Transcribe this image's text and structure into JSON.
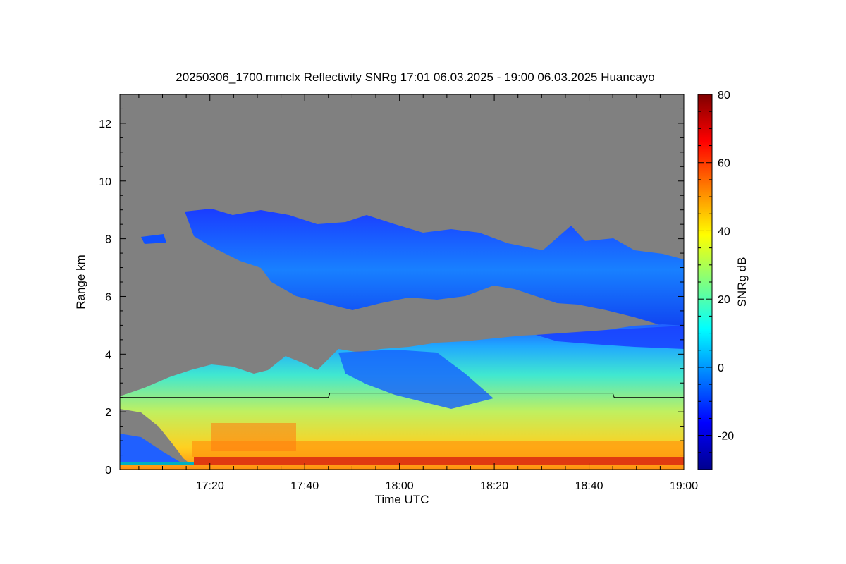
{
  "chart_data": {
    "type": "heatmap",
    "title": "20250306_1700.mmclx Reflectivity SNRg   17:01 06.03.2025 - 19:00 06.03.2025 Huancayo",
    "xlabel": "Time UTC",
    "ylabel": "Range km",
    "x_range_minutes_utc": [
      1021,
      1140
    ],
    "x_ticks": [
      {
        "minute": 1040,
        "label": "17:20"
      },
      {
        "minute": 1060,
        "label": "17:40"
      },
      {
        "minute": 1080,
        "label": "18:00"
      },
      {
        "minute": 1100,
        "label": "18:20"
      },
      {
        "minute": 1120,
        "label": "18:40"
      },
      {
        "minute": 1140,
        "label": "19:00"
      }
    ],
    "y_range_km": [
      0,
      13
    ],
    "y_ticks": [
      0,
      2,
      4,
      6,
      8,
      10,
      12
    ],
    "colorbar": {
      "label": "SNRg dB",
      "range": [
        -30,
        80
      ],
      "ticks": [
        -20,
        0,
        20,
        40,
        60,
        80
      ],
      "colormap": "jet"
    },
    "background_color": "#808080",
    "echo_layers": [
      {
        "description": "upper cloud layer",
        "time_start": "17:07",
        "time_end": "19:00",
        "base_km": 5.5,
        "top_km": 9.0,
        "snr_db_approx": -15
      },
      {
        "description": "lower boundary-layer echo",
        "time_start": "17:01",
        "time_end": "19:00",
        "base_km": 0.0,
        "top_km": 4.5,
        "snr_db_approx": 25
      },
      {
        "description": "surface strong echo",
        "time_start": "17:15",
        "time_end": "19:00",
        "base_km": 0.0,
        "top_km": 0.2,
        "snr_db_approx": 60
      }
    ],
    "overlay_line": {
      "description": "thin black line",
      "points": [
        {
          "minute": 1021,
          "km": 2.5
        },
        {
          "minute": 1065,
          "km": 2.5
        },
        {
          "minute": 1065.3,
          "km": 2.65
        },
        {
          "minute": 1125,
          "km": 2.65
        },
        {
          "minute": 1125.3,
          "km": 2.5
        },
        {
          "minute": 1140,
          "km": 2.5
        }
      ]
    }
  }
}
